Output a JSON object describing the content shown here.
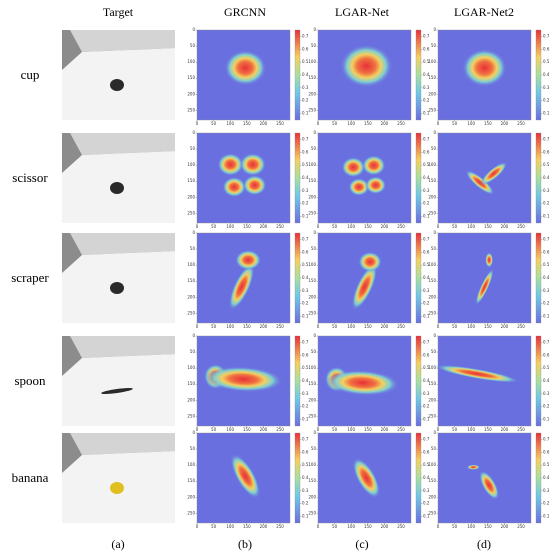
{
  "column_headers": [
    "Target",
    "GRCNN",
    "LGAR-Net",
    "LGAR-Net2"
  ],
  "rows": [
    {
      "label": "cup"
    },
    {
      "label": "scissor"
    },
    {
      "label": "scraper"
    },
    {
      "label": "spoon"
    },
    {
      "label": "banana"
    }
  ],
  "panel_labels": [
    "(a)",
    "(b)",
    "(c)",
    "(d)"
  ],
  "heatmap_axes": {
    "xticks": [
      0,
      50,
      100,
      150,
      200,
      250
    ],
    "yticks": [
      0,
      50,
      100,
      150,
      200,
      250
    ],
    "colorbar_ticks": [
      0.1,
      0.2,
      0.3,
      0.4,
      0.5,
      0.6,
      0.7
    ]
  }
}
